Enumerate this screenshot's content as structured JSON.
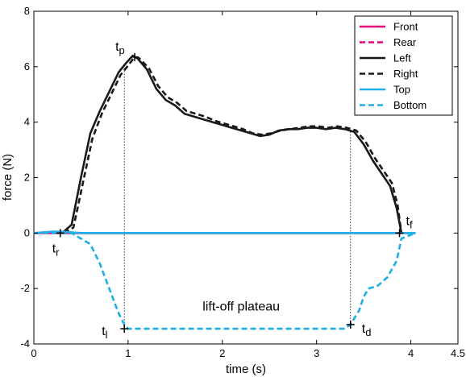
{
  "chart_data": {
    "type": "line",
    "xlabel": "time (s)",
    "ylabel": "force (N)",
    "xlim": [
      0,
      4.5
    ],
    "ylim": [
      -4,
      8
    ],
    "xticks": [
      "0",
      "1",
      "2",
      "3",
      "4",
      "4.5"
    ],
    "xtick_values": [
      0,
      1,
      2,
      3,
      4,
      4.5
    ],
    "yticks": [
      "-4",
      "-2",
      "0",
      "2",
      "4",
      "6",
      "8"
    ],
    "ytick_values": [
      -4,
      -2,
      0,
      2,
      4,
      6,
      8
    ],
    "grid": false,
    "legend_position": "top-right",
    "series": [
      {
        "name": "Front",
        "color": "#e6007e",
        "dash": "solid",
        "x": [
          0,
          0.5,
          1,
          1.5,
          2,
          2.5,
          3,
          3.5,
          4.05
        ],
        "y": [
          0,
          0,
          0,
          0,
          0,
          0,
          0,
          0,
          0
        ]
      },
      {
        "name": "Rear",
        "color": "#e6007e",
        "dash": "dashed",
        "x": [
          0,
          0.5,
          1,
          1.5,
          2,
          2.5,
          3,
          3.5,
          4.05
        ],
        "y": [
          0,
          0,
          0,
          0,
          0,
          0,
          0,
          0,
          0
        ]
      },
      {
        "name": "Left",
        "color": "#1a1a1a",
        "dash": "solid",
        "x": [
          0.3,
          0.4,
          0.5,
          0.6,
          0.7,
          0.8,
          0.9,
          0.97,
          1.05,
          1.1,
          1.2,
          1.3,
          1.4,
          1.5,
          1.6,
          1.7,
          1.8,
          1.9,
          2.0,
          2.1,
          2.2,
          2.3,
          2.4,
          2.5,
          2.6,
          2.7,
          2.8,
          2.9,
          3.0,
          3.1,
          3.2,
          3.3,
          3.35,
          3.4,
          3.5,
          3.6,
          3.7,
          3.78,
          3.85,
          3.9
        ],
        "y": [
          0,
          0.3,
          2.0,
          3.6,
          4.4,
          5.1,
          5.8,
          6.1,
          6.4,
          6.3,
          5.9,
          5.2,
          4.8,
          4.6,
          4.3,
          4.2,
          4.1,
          4.0,
          3.9,
          3.8,
          3.7,
          3.6,
          3.5,
          3.55,
          3.7,
          3.75,
          3.75,
          3.8,
          3.8,
          3.75,
          3.8,
          3.75,
          3.7,
          3.65,
          3.2,
          2.6,
          2.1,
          1.7,
          0.9,
          0
        ]
      },
      {
        "name": "Right",
        "color": "#1a1a1a",
        "dash": "dashed",
        "x": [
          0.32,
          0.42,
          0.52,
          0.62,
          0.72,
          0.82,
          0.92,
          0.99,
          1.07,
          1.12,
          1.22,
          1.32,
          1.42,
          1.52,
          1.62,
          1.72,
          1.82,
          1.92,
          2.02,
          2.12,
          2.22,
          2.32,
          2.42,
          2.52,
          2.62,
          2.72,
          2.82,
          2.92,
          3.02,
          3.12,
          3.22,
          3.32,
          3.37,
          3.42,
          3.52,
          3.62,
          3.72,
          3.8,
          3.86,
          3.9
        ],
        "y": [
          0,
          0.2,
          1.8,
          3.4,
          4.3,
          5.0,
          5.7,
          6.0,
          6.35,
          6.3,
          5.95,
          5.3,
          4.9,
          4.7,
          4.4,
          4.3,
          4.2,
          4.05,
          3.95,
          3.85,
          3.75,
          3.6,
          3.55,
          3.6,
          3.7,
          3.75,
          3.8,
          3.85,
          3.85,
          3.8,
          3.85,
          3.8,
          3.75,
          3.7,
          3.3,
          2.7,
          2.2,
          1.8,
          1.0,
          0
        ]
      },
      {
        "name": "Top",
        "color": "#1eaee6",
        "dash": "solid",
        "x": [
          0,
          0.2,
          0.3,
          0.5,
          1,
          1.5,
          2,
          2.5,
          3,
          3.5,
          4.05
        ],
        "y": [
          0,
          0.05,
          0.05,
          0,
          0,
          0,
          0,
          0,
          0,
          0,
          0
        ]
      },
      {
        "name": "Bottom",
        "color": "#1eaee6",
        "dash": "dashed",
        "x": [
          0,
          0.25,
          0.4,
          0.5,
          0.6,
          0.7,
          0.8,
          0.9,
          0.96,
          1.0,
          1.2,
          1.5,
          2.0,
          2.5,
          3.0,
          3.3,
          3.36,
          3.45,
          3.5,
          3.55,
          3.65,
          3.75,
          3.85,
          3.9,
          4.05
        ],
        "y": [
          0,
          0,
          0,
          -0.2,
          -0.4,
          -1.1,
          -2.0,
          -2.9,
          -3.3,
          -3.45,
          -3.45,
          -3.45,
          -3.45,
          -3.45,
          -3.45,
          -3.45,
          -3.3,
          -2.8,
          -2.3,
          -2.0,
          -1.9,
          -1.6,
          -1.0,
          -0.2,
          0
        ]
      }
    ],
    "markers": [
      {
        "label": "r",
        "x": 0.28,
        "y": 0
      },
      {
        "label": "p",
        "x": 1.07,
        "y": 6.35
      },
      {
        "label": "l",
        "x": 0.96,
        "y": -3.45
      },
      {
        "label": "d",
        "x": 3.36,
        "y": -3.3
      },
      {
        "label": "f",
        "x": 3.88,
        "y": 0
      }
    ],
    "marker_prefix": "t",
    "guide_lines": [
      {
        "x": 0.96,
        "y_from": -3.45,
        "y_to": 6.1
      },
      {
        "x": 3.36,
        "y_from": -3.3,
        "y_to": 3.7
      }
    ],
    "annotations": [
      {
        "text": "lift-off plateau",
        "x": 2.2,
        "y": -2.8
      }
    ]
  }
}
